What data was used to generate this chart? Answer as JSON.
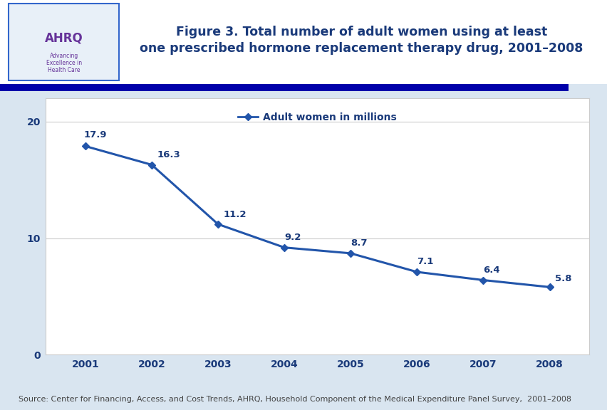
{
  "title_line1": "Figure 3. Total number of adult women using at least",
  "title_line2": "one prescribed hormone replacement therapy drug, 2001–2008",
  "years": [
    2001,
    2002,
    2003,
    2004,
    2005,
    2006,
    2007,
    2008
  ],
  "values": [
    17.9,
    16.3,
    11.2,
    9.2,
    8.7,
    7.1,
    6.4,
    5.8
  ],
  "line_color": "#2255AA",
  "marker_color": "#2255AA",
  "yticks": [
    0,
    10,
    20
  ],
  "ylim": [
    0,
    22
  ],
  "xlim": [
    2000.4,
    2008.6
  ],
  "legend_label": "Adult women in millions",
  "source_text": "Source: Center for Financing, Access, and Cost Trends, AHRQ, Household Component of the Medical Expenditure Panel Survey,  2001–2008",
  "fig_bg_color": "#FFFFFF",
  "outer_bg_color": "#D9E5F0",
  "header_bg_color": "#FFFFFF",
  "navy_bar_color": "#0000AA",
  "chart_bg_color": "#FFFFFF",
  "chart_border_color": "#CCCCCC",
  "title_color": "#1A3A7A",
  "axis_tick_color": "#1A3A7A",
  "data_label_color": "#1A3A7A",
  "grid_color": "#CCCCCC",
  "source_color": "#444444",
  "title_fontsize": 12.5,
  "legend_fontsize": 10,
  "data_label_fontsize": 9.5,
  "axis_tick_fontsize": 10,
  "source_fontsize": 8
}
